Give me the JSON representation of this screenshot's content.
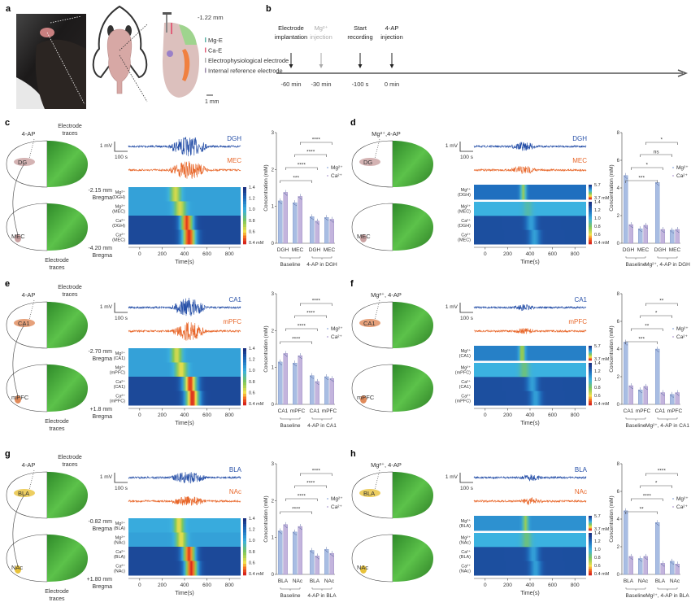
{
  "colors": {
    "mg_trace": "#2750a8",
    "ca_trace": "#e8672a",
    "mg_bar": "#a8bde3",
    "ca_bar": "#c3b4dd",
    "brain_green": "#3f9f34"
  },
  "panel_a": {
    "letter": "a",
    "depth": "-1.22 mm",
    "scale": "1 mm",
    "legend": [
      {
        "label": "Mg-E",
        "color": "#5fb3a8"
      },
      {
        "label": "Ca-E",
        "color": "#e0607a"
      },
      {
        "label": "Electrophysiological electrode",
        "color": "#b0b0b0"
      },
      {
        "label": "Internal reference electrode",
        "color": "#9a8aa8"
      }
    ]
  },
  "panel_b": {
    "letter": "b",
    "events": [
      {
        "line1": "Electrode",
        "line2": "implantation",
        "time": "-60 min",
        "color": "#222222"
      },
      {
        "line1": "Mg²⁺",
        "line2": "injection",
        "time": "-30 min",
        "color": "#aaaaaa"
      },
      {
        "line1": "Start",
        "line2": "recording",
        "time": "-100 s",
        "color": "#222222"
      },
      {
        "line1": "4-AP",
        "line2": "injection",
        "time": "0 min",
        "color": "#222222"
      }
    ]
  },
  "common": {
    "scale_mv": "1 mV",
    "scale_s": "100 s",
    "time_label": "Time(s)",
    "ylabel": "Concentration (mM)",
    "legend_mg": "Mg²⁺",
    "legend_ca": "Ca²⁺",
    "electrode_traces_1": "Electrode",
    "electrode_traces_2": "traces",
    "cbar_ca": [
      "1.4",
      "1.2",
      "1.0",
      "0.8",
      "0.6",
      "0.4 mM"
    ],
    "cbar_mg": [
      "5.7",
      "3.7 mM"
    ],
    "time_ticks": [
      "0",
      "200",
      "400",
      "600",
      "800"
    ],
    "bregma": "Bregma"
  },
  "panels": [
    {
      "letter": "c",
      "injection": "4-AP",
      "region1": "DG",
      "region2": "MEC",
      "region_color": "#c9a0a0",
      "show_traces_labels": true,
      "bregma_top": "-2.15 mm",
      "bregma_bottom": "-4.20 mm",
      "traces": [
        {
          "label": "DGH",
          "burst": [
            250,
            620
          ],
          "amp": 1.0
        },
        {
          "label": "MEC",
          "burst": [
            250,
            620
          ],
          "amp": 0.9
        }
      ],
      "heatmap": {
        "split": false,
        "rows": [
          {
            "ion": "Mg²⁺",
            "region": "(DGH)",
            "base": 1.05,
            "min": 0.65,
            "t": 320,
            "w": 45,
            "scale": "ca"
          },
          {
            "ion": "Mg²⁺",
            "region": "(MEC)",
            "base": 1.05,
            "min": 0.65,
            "t": 360,
            "w": 50,
            "scale": "ca"
          },
          {
            "ion": "Ca²⁺",
            "region": "(DGH)",
            "base": 1.32,
            "min": 0.42,
            "t": 420,
            "w": 55,
            "scale": "ca"
          },
          {
            "ion": "Ca²⁺",
            "region": "(MEC)",
            "base": 1.32,
            "min": 0.4,
            "t": 440,
            "w": 60,
            "scale": "ca"
          }
        ]
      },
      "chart_data": {
        "type": "bar",
        "ylim": [
          0,
          3
        ],
        "yticks": [
          "0",
          "1",
          "2",
          "3"
        ],
        "categories": [
          "DGH",
          "MEC",
          "DGH",
          "MEC"
        ],
        "groups": [
          "Baseline",
          "4-AP in DGH"
        ],
        "series": [
          {
            "name": "Mg²⁺",
            "values": [
              1.15,
              1.1,
              0.72,
              0.7
            ]
          },
          {
            "name": "Ca²⁺",
            "values": [
              1.38,
              1.27,
              0.6,
              0.65
            ]
          }
        ],
        "significance": [
          "***",
          "****",
          "****",
          "****"
        ]
      }
    },
    {
      "letter": "d",
      "injection": "Mg²⁺,4-AP",
      "region1": "DG",
      "region2": "MEC",
      "region_color": "#c9a0a0",
      "show_traces_labels": false,
      "traces": [
        {
          "label": "DGH",
          "burst": [
            220,
            460
          ],
          "amp": 0.4
        },
        {
          "label": "MEC",
          "burst": [
            220,
            460
          ],
          "amp": 0.4
        }
      ],
      "heatmap": {
        "split": true,
        "rows": [
          {
            "ion": "Mg²⁺",
            "region": "(DGH)",
            "base": 5.3,
            "min": 4.4,
            "t": 340,
            "w": 25,
            "scale": "mg"
          },
          {
            "ion": "Mg²⁺",
            "region": "(MEC)",
            "base": 1.0,
            "min": 0.92,
            "t": 380,
            "w": 40,
            "scale": "ca"
          },
          {
            "ion": "Ca²⁺",
            "region": "(DGH)",
            "base": 1.3,
            "min": 1.05,
            "t": 410,
            "w": 45,
            "scale": "ca"
          },
          {
            "ion": "Ca²⁺",
            "region": "(MEC)",
            "base": 1.3,
            "min": 1.05,
            "t": 440,
            "w": 45,
            "scale": "ca"
          }
        ]
      },
      "chart_data": {
        "type": "bar",
        "ylim": [
          0,
          8
        ],
        "yticks": [
          "0",
          "2",
          "4",
          "6",
          "8"
        ],
        "categories": [
          "DGH",
          "MEC",
          "DGH",
          "MEC"
        ],
        "groups": [
          "Baseline",
          "Mg²⁺, 4-AP in DGH"
        ],
        "series": [
          {
            "name": "Mg²⁺",
            "values": [
              4.9,
              1.05,
              4.4,
              0.95
            ]
          },
          {
            "name": "Ca²⁺",
            "values": [
              1.35,
              1.3,
              1.0,
              1.0
            ]
          }
        ],
        "significance": [
          "***",
          "*",
          "ns",
          "*"
        ]
      }
    },
    {
      "letter": "e",
      "injection": "4-AP",
      "region1": "CA1",
      "region2": "mPFC",
      "region_color": "#e08a5a",
      "show_traces_labels": true,
      "bregma_top": "-2.70 mm",
      "bregma_bottom": "+1.8 mm",
      "traces": [
        {
          "label": "CA1",
          "burst": [
            280,
            600
          ],
          "amp": 1.0
        },
        {
          "label": "mPFC",
          "burst": [
            280,
            600
          ],
          "amp": 1.0
        }
      ],
      "heatmap": {
        "split": false,
        "rows": [
          {
            "ion": "Mg²⁺",
            "region": "(CA1)",
            "base": 1.05,
            "min": 0.65,
            "t": 330,
            "w": 45,
            "scale": "ca"
          },
          {
            "ion": "Mg²⁺",
            "region": "(mPFC)",
            "base": 1.05,
            "min": 0.62,
            "t": 370,
            "w": 50,
            "scale": "ca"
          },
          {
            "ion": "Ca²⁺",
            "region": "(CA1)",
            "base": 1.32,
            "min": 0.42,
            "t": 450,
            "w": 60,
            "scale": "ca"
          },
          {
            "ion": "Ca²⁺",
            "region": "(mPFC)",
            "base": 1.32,
            "min": 0.4,
            "t": 470,
            "w": 60,
            "scale": "ca"
          }
        ]
      },
      "chart_data": {
        "type": "bar",
        "ylim": [
          0,
          3
        ],
        "yticks": [
          "0",
          "1",
          "2",
          "3"
        ],
        "categories": [
          "CA1",
          "mPFC",
          "CA1",
          "mPFC"
        ],
        "groups": [
          "Baseline",
          "4-AP in CA1"
        ],
        "series": [
          {
            "name": "Mg²⁺",
            "values": [
              1.15,
              1.12,
              0.78,
              0.75
            ]
          },
          {
            "name": "Ca²⁺",
            "values": [
              1.38,
              1.32,
              0.62,
              0.7
            ]
          }
        ],
        "significance": [
          "****",
          "****",
          "****",
          "****"
        ]
      }
    },
    {
      "letter": "f",
      "injection": "Mg²⁺, 4-AP",
      "region1": "CA1",
      "region2": "mPFC",
      "region_color": "#e08a5a",
      "show_traces_labels": false,
      "traces": [
        {
          "label": "CA1",
          "burst": [
            250,
            450
          ],
          "amp": 0.25
        },
        {
          "label": "mPFC",
          "burst": [
            250,
            450
          ],
          "amp": 0.25
        }
      ],
      "heatmap": {
        "split": true,
        "rows": [
          {
            "ion": "Mg²⁺",
            "region": "(CA1)",
            "base": 5.2,
            "min": 4.3,
            "t": 330,
            "w": 25,
            "scale": "mg"
          },
          {
            "ion": "Mg²⁺",
            "region": "(mPFC)",
            "base": 1.0,
            "min": 0.85,
            "t": 350,
            "w": 40,
            "scale": "ca"
          },
          {
            "ion": "Ca²⁺",
            "region": "(CA1)",
            "base": 1.3,
            "min": 1.05,
            "t": 420,
            "w": 45,
            "scale": "ca"
          },
          {
            "ion": "Ca²⁺",
            "region": "(mPFC)",
            "base": 1.3,
            "min": 1.05,
            "t": 450,
            "w": 45,
            "scale": "ca"
          }
        ]
      },
      "chart_data": {
        "type": "bar",
        "ylim": [
          0,
          8
        ],
        "yticks": [
          "0",
          "2",
          "4",
          "6",
          "8"
        ],
        "categories": [
          "CA1",
          "mPFC",
          "CA1",
          "mPFC"
        ],
        "groups": [
          "Baseline",
          "Mg²⁺, 4-AP in CA1"
        ],
        "series": [
          {
            "name": "Mg²⁺",
            "values": [
              4.5,
              1.05,
              4.0,
              0.72
            ]
          },
          {
            "name": "Ca²⁺",
            "values": [
              1.35,
              1.3,
              0.85,
              0.85
            ]
          }
        ],
        "significance": [
          "***",
          "**",
          "*",
          "**"
        ]
      }
    },
    {
      "letter": "g",
      "injection": "4-AP",
      "region1": "BLA",
      "region2": "NAc",
      "region_color": "#e8c23a",
      "show_traces_labels": true,
      "bregma_top": "-0.82 mm",
      "bregma_bottom": "+1.80 mm",
      "traces": [
        {
          "label": "BLA",
          "burst": [
            270,
            600
          ],
          "amp": 0.6
        },
        {
          "label": "NAc",
          "burst": [
            270,
            600
          ],
          "amp": 0.45
        }
      ],
      "heatmap": {
        "split": false,
        "rows": [
          {
            "ion": "Mg²⁺",
            "region": "(BLA)",
            "base": 1.02,
            "min": 0.62,
            "t": 350,
            "w": 40,
            "scale": "ca"
          },
          {
            "ion": "Mg²⁺",
            "region": "(NAc)",
            "base": 1.05,
            "min": 0.62,
            "t": 370,
            "w": 45,
            "scale": "ca"
          },
          {
            "ion": "Ca²⁺",
            "region": "(BLA)",
            "base": 1.32,
            "min": 0.42,
            "t": 440,
            "w": 55,
            "scale": "ca"
          },
          {
            "ion": "Ca²⁺",
            "region": "(NAc)",
            "base": 1.32,
            "min": 0.4,
            "t": 460,
            "w": 55,
            "scale": "ca"
          }
        ]
      },
      "chart_data": {
        "type": "bar",
        "ylim": [
          0,
          3
        ],
        "yticks": [
          "0",
          "1",
          "2",
          "3"
        ],
        "categories": [
          "BLA",
          "NAc",
          "BLA",
          "NAc"
        ],
        "groups": [
          "Baseline",
          "4-AP in BLA"
        ],
        "series": [
          {
            "name": "Mg²⁺",
            "values": [
              1.18,
              1.15,
              0.65,
              0.68
            ]
          },
          {
            "name": "Ca²⁺",
            "values": [
              1.35,
              1.3,
              0.5,
              0.57
            ]
          }
        ],
        "significance": [
          "****",
          "****",
          "****",
          "****"
        ]
      }
    },
    {
      "letter": "h",
      "injection": "Mg²⁺, 4-AP",
      "region1": "BLA",
      "region2": "NAc",
      "region_color": "#e8c23a",
      "show_traces_labels": false,
      "traces": [
        {
          "label": "BLA",
          "burst": [
            300,
            520
          ],
          "amp": 0.25
        },
        {
          "label": "NAc",
          "burst": [
            300,
            520
          ],
          "amp": 0.3
        }
      ],
      "heatmap": {
        "split": true,
        "rows": [
          {
            "ion": "Mg²⁺",
            "region": "(BLA)",
            "base": 5.1,
            "min": 4.4,
            "t": 360,
            "w": 25,
            "scale": "mg"
          },
          {
            "ion": "Mg²⁺",
            "region": "(NAc)",
            "base": 1.0,
            "min": 0.85,
            "t": 370,
            "w": 40,
            "scale": "ca"
          },
          {
            "ion": "Ca²⁺",
            "region": "(BLA)",
            "base": 1.3,
            "min": 1.05,
            "t": 430,
            "w": 45,
            "scale": "ca"
          },
          {
            "ion": "Ca²⁺",
            "region": "(NAc)",
            "base": 1.3,
            "min": 1.05,
            "t": 450,
            "w": 45,
            "scale": "ca"
          }
        ]
      },
      "chart_data": {
        "type": "bar",
        "ylim": [
          0,
          8
        ],
        "yticks": [
          "0",
          "2",
          "4",
          "6",
          "8"
        ],
        "categories": [
          "BLA",
          "NAc",
          "BLA",
          "NAc"
        ],
        "groups": [
          "Baseline",
          "Mg²⁺, 4-AP in BLA"
        ],
        "series": [
          {
            "name": "Mg²⁺",
            "values": [
              4.6,
              1.15,
              3.75,
              0.95
            ]
          },
          {
            "name": "Ca²⁺",
            "values": [
              1.3,
              1.3,
              0.8,
              0.75
            ]
          }
        ],
        "significance": [
          "**",
          "****",
          "*",
          "****"
        ]
      }
    }
  ]
}
